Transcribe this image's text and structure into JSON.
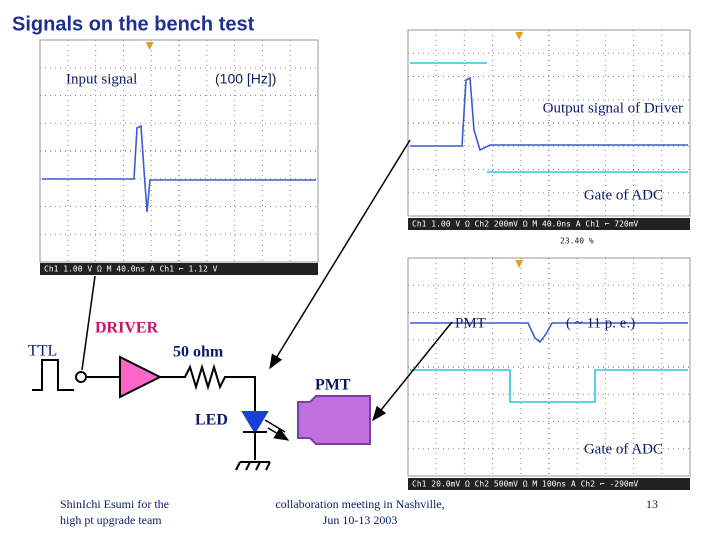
{
  "title": "Signals on the bench test",
  "scope_input": {
    "label": "Input signal",
    "rate": "(100 [Hz])",
    "readout": "Ch1  1.00 V Ω     M 40.0ns  A  Ch1  ⌐  1.12 V"
  },
  "scope_output": {
    "label": "Output signal of Driver",
    "gate": "Gate of ADC",
    "readout": "Ch1  1.00 V Ω  Ch2  200mV Ω  M 40.0ns  A  Ch1  ⌐  720mV",
    "position": "23.40 %"
  },
  "scope_pmt": {
    "label": "PMT",
    "pe": "( ~ 11 p. e.)",
    "gate": "Gate of ADC",
    "readout": "Ch1 20.0mV Ω  Ch2  500mV Ω  M 100ns  A  Ch2  ⌐ -290mV"
  },
  "circuit": {
    "ttl": "TTL",
    "driver": "DRIVER",
    "resistor": "50 ohm",
    "pmt": "PMT",
    "led": "LED"
  },
  "footer": {
    "author": [
      "ShinIchi Esumi for the",
      "high pt upgrade team"
    ],
    "meeting": [
      "collaboration meeting in Nashville,",
      "Jun 10-13 2003"
    ],
    "page": "13"
  }
}
